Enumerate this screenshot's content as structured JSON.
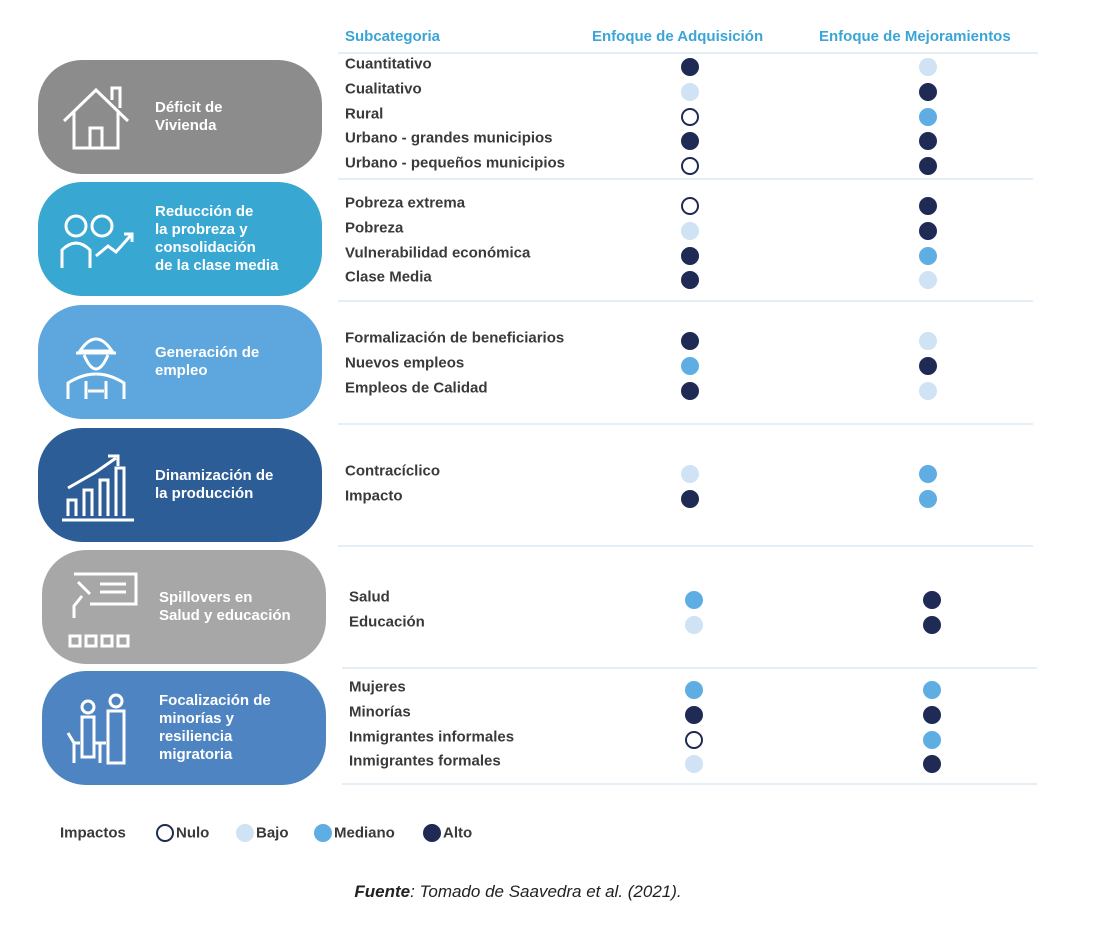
{
  "header": {
    "subcategory": "Subcategoria",
    "col_a": "Enfoque de Adquisición",
    "col_b": "Enfoque de Mejoramientos"
  },
  "groups": [
    {
      "label": "Déficit de\nVivienda",
      "color": "#8c8c8c",
      "rows": [
        {
          "label": "Cuantitativo",
          "a": "Alto",
          "b": "Bajo"
        },
        {
          "label": "Cualitativo",
          "a": "Bajo",
          "b": "Alto"
        },
        {
          "label": "Rural",
          "a": "Nulo",
          "b": "Mediano"
        },
        {
          "label": "Urbano - grandes municipios",
          "a": "Alto",
          "b": "Alto"
        },
        {
          "label": "Urbano - pequeños municipios",
          "a": "Nulo",
          "b": "Alto"
        }
      ]
    },
    {
      "label": "Reducción de\nla probreza y\nconsolidación\nde la clase media",
      "color": "#38a7d2",
      "rows": [
        {
          "label": "Pobreza extrema",
          "a": "Nulo",
          "b": "Alto"
        },
        {
          "label": "Pobreza",
          "a": "Bajo",
          "b": "Alto"
        },
        {
          "label": "Vulnerabilidad económica",
          "a": "Alto",
          "b": "Mediano"
        },
        {
          "label": "Clase Media",
          "a": "Alto",
          "b": "Bajo"
        }
      ]
    },
    {
      "label": "Generación de\nempleo",
      "color": "#5ea6de",
      "rows": [
        {
          "label": "Formalización de beneficiarios",
          "a": "Alto",
          "b": "Bajo"
        },
        {
          "label": "Nuevos empleos",
          "a": "Mediano",
          "b": "Alto"
        },
        {
          "label": "Empleos de Calidad",
          "a": "Alto",
          "b": "Bajo"
        }
      ]
    },
    {
      "label": "Dinamización de\nla producción",
      "color": "#2c5d97",
      "rows": [
        {
          "label": "Contracíclico",
          "a": "Bajo",
          "b": "Mediano"
        },
        {
          "label": "Impacto",
          "a": "Alto",
          "b": "Mediano"
        }
      ]
    },
    {
      "label": "Spillovers en\nSalud y educación",
      "color": "#a7a7a7",
      "rows": [
        {
          "label": "Salud",
          "a": "Mediano",
          "b": "Alto"
        },
        {
          "label": "Educación",
          "a": "Bajo",
          "b": "Alto"
        }
      ]
    },
    {
      "label": "Focalización de\nminorías y\nresiliencia\nmigratoria",
      "color": "#4e84c2",
      "rows": [
        {
          "label": "Mujeres",
          "a": "Mediano",
          "b": "Mediano"
        },
        {
          "label": "Minorías",
          "a": "Alto",
          "b": "Alto"
        },
        {
          "label": "Inmigrantes informales",
          "a": "Nulo",
          "b": "Mediano"
        },
        {
          "label": "Inmigrantes formales",
          "a": "Bajo",
          "b": "Alto"
        }
      ]
    }
  ],
  "legend": {
    "title": "Impactos",
    "items": [
      {
        "label": "Nulo",
        "color": "#ffffff",
        "border": "#1f2a55"
      },
      {
        "label": "Bajo",
        "color": "#cfe3f4",
        "border": "#cfe3f4"
      },
      {
        "label": "Mediano",
        "color": "#5eaee3",
        "border": "#5eaee3"
      },
      {
        "label": "Alto",
        "color": "#1f2a55",
        "border": "#1f2a55"
      }
    ]
  },
  "source": {
    "label": "Fuente",
    "text": ": Tomado de Saavedra et al. (2021)."
  }
}
